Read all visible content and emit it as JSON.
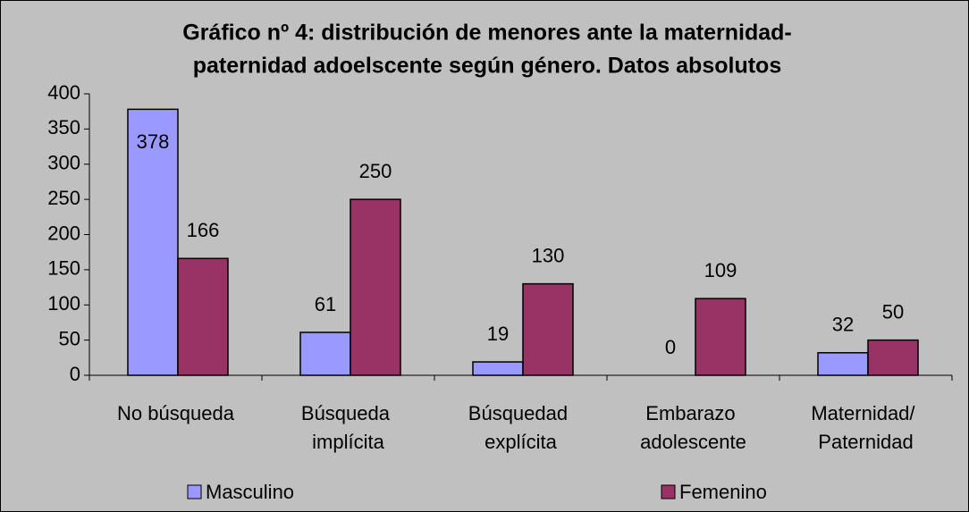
{
  "chart_data": {
    "type": "bar",
    "title": [
      "Gráfico nº 4: distribución de menores ante la maternidad-",
      "paternidad adoelscente según género. Datos absolutos"
    ],
    "categories": [
      "No búsqueda",
      "Búsqueda implícita",
      "Búsquedad explícita",
      "Embarazo adolescente",
      "Maternidad/ Paternidad"
    ],
    "series": [
      {
        "name": "Masculino",
        "color": "#9999ff",
        "values": [
          378,
          61,
          19,
          0,
          32
        ]
      },
      {
        "name": "Femenino",
        "color": "#993366",
        "values": [
          166,
          250,
          130,
          109,
          50
        ]
      }
    ],
    "ylim": [
      0,
      400
    ],
    "yticks": [
      0,
      50,
      100,
      150,
      200,
      250,
      300,
      350,
      400
    ],
    "grid": false,
    "legend": "bottom"
  }
}
